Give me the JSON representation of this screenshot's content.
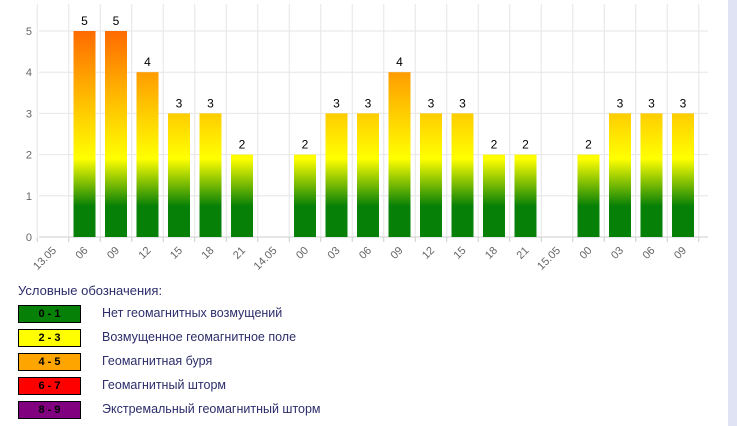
{
  "chart_data": {
    "type": "bar",
    "ylim": [
      0,
      5
    ],
    "yticks": [
      "0",
      "1",
      "2",
      "3",
      "4",
      "5"
    ],
    "title": "",
    "xlabel": "",
    "ylabel": "",
    "tick_labels": [
      "13.05",
      "06",
      "09",
      "12",
      "15",
      "18",
      "21",
      "14.05",
      "00",
      "03",
      "06",
      "09",
      "12",
      "15",
      "18",
      "21",
      "15.05",
      "00",
      "03",
      "06",
      "09"
    ],
    "bars": [
      {
        "slot": 1,
        "value": 5
      },
      {
        "slot": 2,
        "value": 5
      },
      {
        "slot": 3,
        "value": 4
      },
      {
        "slot": 4,
        "value": 3
      },
      {
        "slot": 5,
        "value": 3
      },
      {
        "slot": 6,
        "value": 2
      },
      {
        "slot": 8,
        "value": 2
      },
      {
        "slot": 9,
        "value": 3
      },
      {
        "slot": 10,
        "value": 3
      },
      {
        "slot": 11,
        "value": 4
      },
      {
        "slot": 12,
        "value": 3
      },
      {
        "slot": 13,
        "value": 3
      },
      {
        "slot": 14,
        "value": 2
      },
      {
        "slot": 15,
        "value": 2
      },
      {
        "slot": 17,
        "value": 2
      },
      {
        "slot": 18,
        "value": 3
      },
      {
        "slot": 19,
        "value": 3
      },
      {
        "slot": 20,
        "value": 3
      }
    ],
    "colors": {
      "green": "#078007",
      "yellow": "#ffff00",
      "orange": "#ffa500",
      "red": "#ff3300",
      "grid": "#e6e6e6",
      "axis": "#cccccc",
      "tick": "#666666"
    }
  },
  "legend": {
    "title": "Условные обозначения:",
    "items": [
      {
        "range": "0 - 1",
        "label": "Нет геомагнитных возмущений",
        "color": "#078007"
      },
      {
        "range": "2 - 3",
        "label": "Возмущенное геомагнитное поле",
        "color": "#ffff00"
      },
      {
        "range": "4 - 5",
        "label": "Геомагнитная буря",
        "color": "#ffa500"
      },
      {
        "range": "6 - 7",
        "label": "Геомагнитный шторм",
        "color": "#ff0000"
      },
      {
        "range": "8 - 9",
        "label": "Экстремальный геомагнитный шторм",
        "color": "#800080"
      }
    ]
  }
}
